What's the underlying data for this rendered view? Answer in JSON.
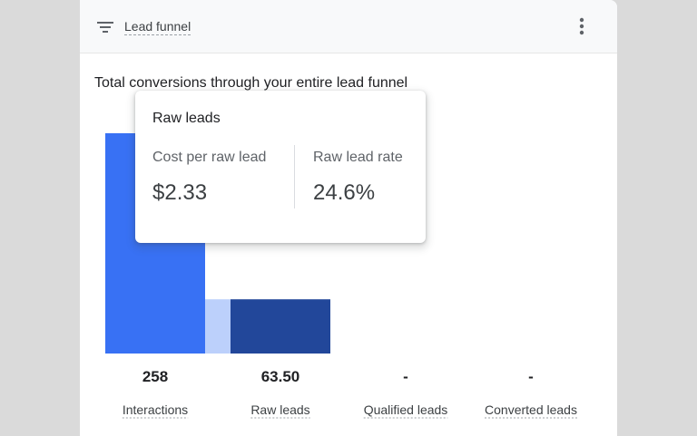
{
  "header": {
    "title": "Lead funnel",
    "filter_icon": "filter-icon",
    "menu_icon": "more-vert-icon"
  },
  "card": {
    "title": "Total conversions through your entire lead funnel"
  },
  "colors": {
    "primary": "#3871f4",
    "dark": "#22479a",
    "light": "#bcd0fb"
  },
  "chart_data": {
    "type": "bar",
    "categories": [
      "Interactions",
      "Raw leads",
      "Qualified leads",
      "Converted leads"
    ],
    "values": [
      258,
      63.5,
      null,
      null
    ],
    "value_labels": [
      "258",
      "63.50",
      "-",
      "-"
    ],
    "ylim": [
      0,
      258
    ],
    "grid": false,
    "legend": "none"
  },
  "tooltip": {
    "title": "Raw leads",
    "metrics": [
      {
        "label": "Cost per raw lead",
        "value": "$2.33"
      },
      {
        "label": "Raw lead rate",
        "value": "24.6%"
      }
    ]
  }
}
